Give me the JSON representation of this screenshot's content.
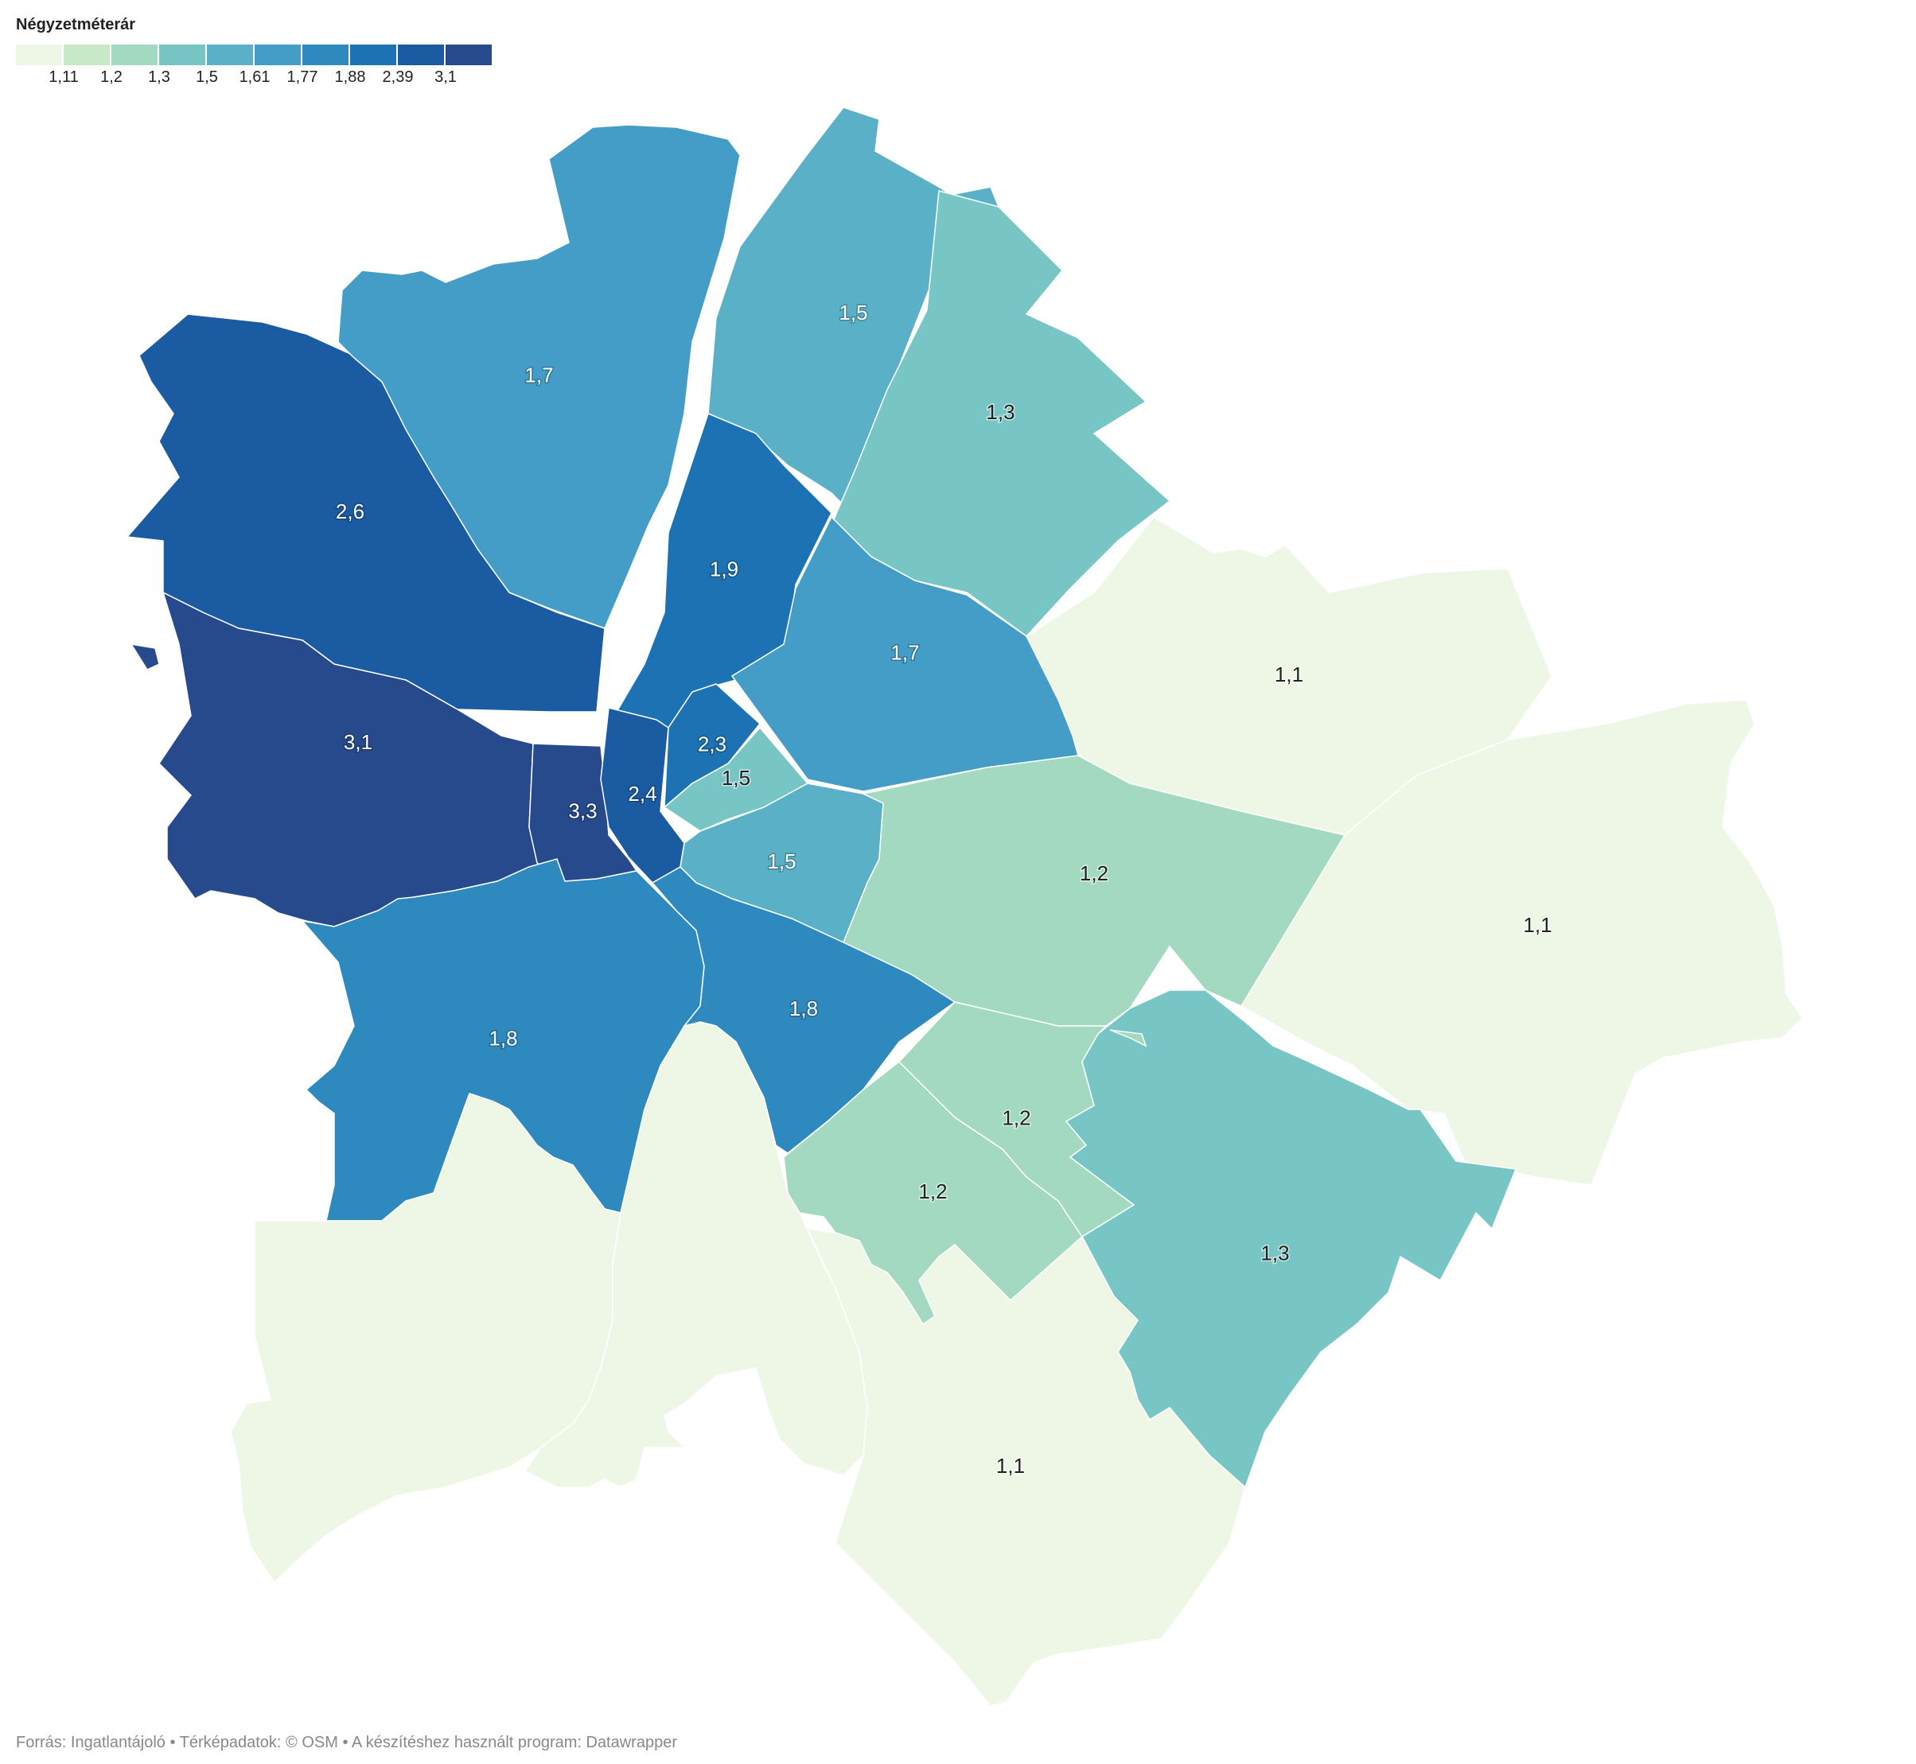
{
  "legend": {
    "title": "Négyzetméterár",
    "colors": [
      "#eef7e6",
      "#c8e8c7",
      "#a2d9c0",
      "#77c5c4",
      "#5ab1c7",
      "#439dc6",
      "#2e89bf",
      "#1c72b2",
      "#1b5ba1",
      "#264a8b"
    ],
    "ticks": [
      "1,11",
      "1,2",
      "1,3",
      "1,5",
      "1,61",
      "1,77",
      "1,88",
      "2,39",
      "3,1"
    ]
  },
  "districts": [
    {
      "id": "d2",
      "value": "2,6",
      "color": "#1b5ba1"
    },
    {
      "id": "d3",
      "value": "1,7",
      "color": "#439dc6"
    },
    {
      "id": "d4",
      "value": "1,5",
      "color": "#5ab1c7"
    },
    {
      "id": "d15",
      "value": "1,3",
      "color": "#77c5c4"
    },
    {
      "id": "d13",
      "value": "1,9",
      "color": "#1c72b2"
    },
    {
      "id": "d14",
      "value": "1,7",
      "color": "#439dc6"
    },
    {
      "id": "d16",
      "value": "1,1",
      "color": "#eef7e6"
    },
    {
      "id": "d12",
      "value": "3,1",
      "color": "#264a8b"
    },
    {
      "id": "d1",
      "value": "3,3",
      "color": "#264a8b"
    },
    {
      "id": "d5",
      "value": "2,4",
      "color": "#1b5ba1"
    },
    {
      "id": "d6",
      "value": "2,3",
      "color": "#1c72b2"
    },
    {
      "id": "d7",
      "value": "1,5",
      "color": "#77c5c4"
    },
    {
      "id": "d8",
      "value": "1,5",
      "color": "#5ab1c7"
    },
    {
      "id": "d10",
      "value": "1,2",
      "color": "#a2d9c0"
    },
    {
      "id": "d17",
      "value": "1,1",
      "color": "#eef7e6"
    },
    {
      "id": "d11",
      "value": "1,8",
      "color": "#2e89bf"
    },
    {
      "id": "d9",
      "value": "1,8",
      "color": "#2e89bf"
    },
    {
      "id": "d19",
      "value": "1,2",
      "color": "#a2d9c0"
    },
    {
      "id": "d20",
      "value": "1,2",
      "color": "#a2d9c0"
    },
    {
      "id": "d18",
      "value": "1,3",
      "color": "#77c5c4"
    },
    {
      "id": "d23",
      "value": "1,1",
      "color": "#eef7e6"
    },
    {
      "id": "d22",
      "color": "#eef7e6"
    },
    {
      "id": "d21",
      "color": "#eef7e6"
    }
  ],
  "footer": "Forrás: Ingatlantájoló • Térképadatok: © OSM  • A készítéshez használt program: Datawrapper"
}
